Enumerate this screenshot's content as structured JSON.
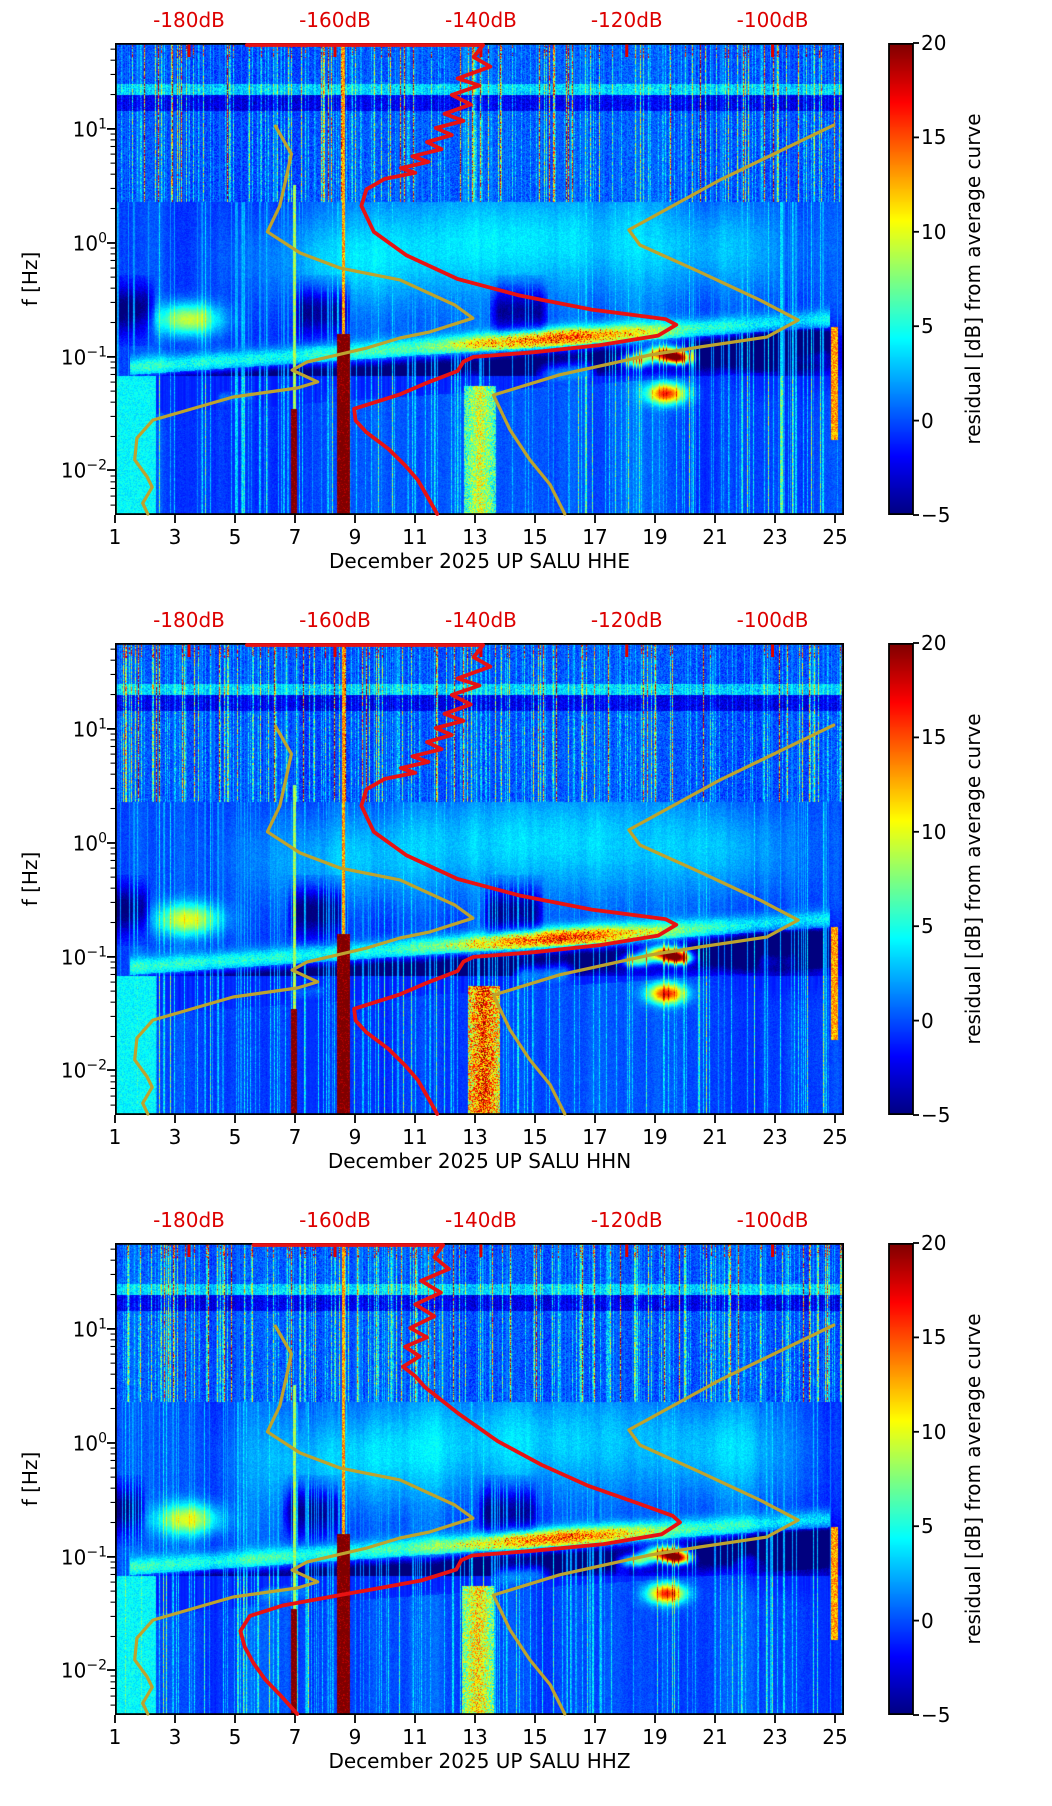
{
  "figure": {
    "background": "#ffffff",
    "station": "UP SALU",
    "month": "December 2025"
  },
  "chart_data": {
    "type": "heatmap",
    "description": "Three stacked spectrogram panels of PSD residual [dB] from average curve vs day of month (x) and frequency in Hz (log y) for channels HHE, HHN, HHZ of station UP SALU, December 2025. Overlaid: red median PSD curve read against red top dB axis, and two dark-yellow envelope curves.",
    "panels": [
      {
        "id": "HHE",
        "xlabel": "December 2025 UP SALU  HHE",
        "seed": 101,
        "red_curve": "red_base",
        "cluster_amp": 13,
        "cluster_x": 0.5,
        "micro_peak": 9
      },
      {
        "id": "HHN",
        "xlabel": "December 2025 UP SALU  HHN",
        "seed": 202,
        "red_curve": "red_base",
        "cluster_amp": 20,
        "cluster_x": 0.505,
        "micro_peak": 10
      },
      {
        "id": "HHZ",
        "xlabel": "December 2025 UP SALU  HHZ",
        "seed": 303,
        "red_curve": "red_hhz",
        "cluster_amp": 15,
        "cluster_x": 0.497,
        "micro_peak": 9
      }
    ],
    "x_axis": {
      "major_days": [
        1,
        3,
        5,
        7,
        9,
        11,
        13,
        15,
        17,
        19,
        21,
        23,
        25
      ],
      "day_min": 1,
      "day_span": 24.3
    },
    "y_axis": {
      "label": "f [Hz]",
      "scale": "log10",
      "decade_exponents": [
        1,
        0,
        -1,
        -2
      ],
      "decade_fracs": [
        0.182,
        0.4237,
        0.665,
        0.9047
      ],
      "log_top": 1.753,
      "frac_per_decade": 0.2415,
      "freq_range_hz": [
        0.004,
        56
      ]
    },
    "top_axis": {
      "labels": [
        "-180dB",
        "-160dB",
        "-140dB",
        "-120dB",
        "-100dB"
      ],
      "fracs": [
        0.1015,
        0.3018,
        0.502,
        0.702,
        0.902
      ],
      "color": "#dd0000"
    },
    "colorbar": {
      "label": "residual [dB] from average curve",
      "tick_values": [
        20,
        15,
        10,
        5,
        0,
        -5
      ],
      "tick_labels": [
        "20",
        "15",
        "10",
        "5",
        "0",
        "−5"
      ],
      "vmin": -5,
      "vmax": 20,
      "colormap": "jet"
    },
    "curves": {
      "colors": {
        "red": "#e81212",
        "yellow": "#bda32e"
      },
      "red_base": [
        [
          0.181,
          0.004
        ],
        [
          0.505,
          0.004
        ],
        [
          0.492,
          0.03
        ],
        [
          0.515,
          0.05
        ],
        [
          0.47,
          0.075
        ],
        [
          0.5,
          0.09
        ],
        [
          0.462,
          0.11
        ],
        [
          0.488,
          0.13
        ],
        [
          0.452,
          0.15
        ],
        [
          0.478,
          0.165
        ],
        [
          0.44,
          0.18
        ],
        [
          0.462,
          0.195
        ],
        [
          0.428,
          0.21
        ],
        [
          0.448,
          0.225
        ],
        [
          0.408,
          0.24
        ],
        [
          0.43,
          0.252
        ],
        [
          0.392,
          0.265
        ],
        [
          0.412,
          0.275
        ],
        [
          0.37,
          0.288
        ],
        [
          0.345,
          0.31
        ],
        [
          0.338,
          0.345
        ],
        [
          0.355,
          0.4
        ],
        [
          0.4,
          0.45
        ],
        [
          0.47,
          0.5
        ],
        [
          0.555,
          0.535
        ],
        [
          0.655,
          0.565
        ],
        [
          0.755,
          0.585
        ],
        [
          0.77,
          0.597
        ],
        [
          0.745,
          0.62
        ],
        [
          0.665,
          0.64
        ],
        [
          0.575,
          0.655
        ],
        [
          0.492,
          0.665
        ],
        [
          0.478,
          0.675
        ],
        [
          0.47,
          0.695
        ],
        [
          0.428,
          0.72
        ],
        [
          0.39,
          0.745
        ],
        [
          0.328,
          0.775
        ],
        [
          0.33,
          0.8
        ],
        [
          0.345,
          0.825
        ],
        [
          0.375,
          0.86
        ],
        [
          0.398,
          0.895
        ],
        [
          0.415,
          0.925
        ],
        [
          0.43,
          0.965
        ],
        [
          0.442,
          1.0
        ]
      ],
      "red_hhz": [
        [
          0.19,
          0.004
        ],
        [
          0.45,
          0.004
        ],
        [
          0.438,
          0.03
        ],
        [
          0.458,
          0.055
        ],
        [
          0.42,
          0.08
        ],
        [
          0.447,
          0.105
        ],
        [
          0.412,
          0.13
        ],
        [
          0.438,
          0.155
        ],
        [
          0.405,
          0.18
        ],
        [
          0.428,
          0.2
        ],
        [
          0.398,
          0.22
        ],
        [
          0.418,
          0.24
        ],
        [
          0.395,
          0.262
        ],
        [
          0.412,
          0.282
        ],
        [
          0.425,
          0.305
        ],
        [
          0.47,
          0.36
        ],
        [
          0.525,
          0.42
        ],
        [
          0.585,
          0.47
        ],
        [
          0.65,
          0.515
        ],
        [
          0.72,
          0.553
        ],
        [
          0.765,
          0.578
        ],
        [
          0.775,
          0.592
        ],
        [
          0.75,
          0.617
        ],
        [
          0.67,
          0.638
        ],
        [
          0.575,
          0.652
        ],
        [
          0.49,
          0.662
        ],
        [
          0.475,
          0.672
        ],
        [
          0.468,
          0.692
        ],
        [
          0.42,
          0.715
        ],
        [
          0.33,
          0.74
        ],
        [
          0.23,
          0.768
        ],
        [
          0.185,
          0.79
        ],
        [
          0.172,
          0.822
        ],
        [
          0.178,
          0.856
        ],
        [
          0.19,
          0.89
        ],
        [
          0.206,
          0.925
        ],
        [
          0.228,
          0.96
        ],
        [
          0.25,
          1.0
        ]
      ],
      "yellow_left": [
        [
          0.22,
          0.176
        ],
        [
          0.242,
          0.235
        ],
        [
          0.232,
          0.305
        ],
        [
          0.226,
          0.345
        ],
        [
          0.209,
          0.4
        ],
        [
          0.254,
          0.445
        ],
        [
          0.309,
          0.477
        ],
        [
          0.391,
          0.502
        ],
        [
          0.466,
          0.555
        ],
        [
          0.491,
          0.583
        ],
        [
          0.432,
          0.612
        ],
        [
          0.391,
          0.625
        ],
        [
          0.346,
          0.646
        ],
        [
          0.263,
          0.676
        ],
        [
          0.243,
          0.693
        ],
        [
          0.278,
          0.718
        ],
        [
          0.25,
          0.731
        ],
        [
          0.162,
          0.75
        ],
        [
          0.052,
          0.799
        ],
        [
          0.03,
          0.837
        ],
        [
          0.027,
          0.883
        ],
        [
          0.044,
          0.919
        ],
        [
          0.051,
          0.941
        ],
        [
          0.038,
          0.975
        ],
        [
          0.045,
          1.0
        ]
      ],
      "yellow_right": [
        [
          0.986,
          0.174
        ],
        [
          0.83,
          0.29
        ],
        [
          0.705,
          0.396
        ],
        [
          0.72,
          0.428
        ],
        [
          0.802,
          0.485
        ],
        [
          0.885,
          0.545
        ],
        [
          0.937,
          0.587
        ],
        [
          0.894,
          0.623
        ],
        [
          0.802,
          0.644
        ],
        [
          0.734,
          0.661
        ],
        [
          0.61,
          0.703
        ],
        [
          0.519,
          0.746
        ],
        [
          0.542,
          0.82
        ],
        [
          0.569,
          0.883
        ],
        [
          0.597,
          0.936
        ],
        [
          0.617,
          1.0
        ]
      ]
    },
    "heatmap_features": {
      "top_band_until": 0.335,
      "cyan_line_y": 0.097,
      "dark_line_band": [
        0.109,
        0.142
      ],
      "microseism": {
        "yc0": 0.662,
        "slope": 0.105,
        "x_ref": 0.25,
        "base_amp": 5.5,
        "peak_x": 0.6
      },
      "right_dark_region": {
        "x": 0.93,
        "y": 0.655
      },
      "left_edge_bright": 0.055,
      "cluster_y": 0.725,
      "blobs": [
        {
          "x": 0.1,
          "y": 0.585,
          "sx": 0.03,
          "sy": 0.024,
          "amp": 10
        },
        {
          "x": 0.715,
          "y": 0.672,
          "sx": 0.016,
          "sy": 0.01,
          "amp": 13
        },
        {
          "x": 0.755,
          "y": 0.657,
          "sx": 0.02,
          "sy": 0.011,
          "amp": 22
        },
        {
          "x": 0.772,
          "y": 0.668,
          "sx": 0.013,
          "sy": 0.009,
          "amp": 18
        },
        {
          "x": 0.756,
          "y": 0.742,
          "sx": 0.018,
          "sy": 0.015,
          "amp": 16
        }
      ],
      "stripes": [
        {
          "x": 0.245,
          "w": 0.0045,
          "y0": 0.775,
          "y1": 1.0,
          "amp": 24
        },
        {
          "x": 0.245,
          "w": 0.002,
          "y0": 0.3,
          "y1": 0.775,
          "amp": 9
        },
        {
          "x": 0.313,
          "w": 0.009,
          "y0": 0.615,
          "y1": 1.0,
          "amp": 24
        },
        {
          "x": 0.313,
          "w": 0.0025,
          "y0": 0.0,
          "y1": 0.615,
          "amp": 14
        },
        {
          "x": 0.986,
          "w": 0.005,
          "y0": 0.6,
          "y1": 0.84,
          "amp": 14
        }
      ]
    }
  }
}
